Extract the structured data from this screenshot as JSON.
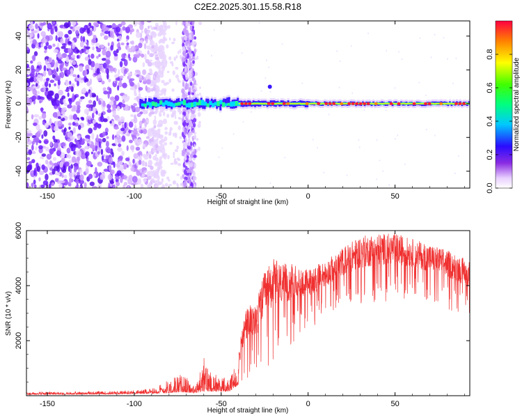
{
  "title": "C2E2.2025.301.15.58.R18",
  "chart_data": [
    {
      "type": "heatmap",
      "name": "spectrogram",
      "xlabel": "Height of straight line (km)",
      "ylabel": "Frequency (Hz)",
      "xlim": [
        -162,
        93
      ],
      "ylim": [
        -50,
        49
      ],
      "xticks": [
        -150,
        -100,
        -50,
        0,
        50
      ],
      "yticks": [
        -40,
        -20,
        0,
        20,
        40
      ],
      "colorbar": {
        "label": "Normalized spectral amplitude",
        "range": [
          0,
          1
        ],
        "ticks": [
          "0.0",
          "0.2",
          "0.4",
          "0.6",
          "0.8"
        ]
      },
      "features": {
        "noise_region_km": [
          -162,
          -90
        ],
        "noise_band_km": [
          -72,
          -65
        ],
        "signal_start_km": -97,
        "signal_frequency_hz": 0
      }
    },
    {
      "type": "line",
      "name": "snr",
      "xlabel": "Height of straight line (km)",
      "ylabel": "SNR (10 * v/v)",
      "xlim": [
        -162,
        93
      ],
      "ylim": [
        0,
        6000
      ],
      "xticks": [
        -150,
        -100,
        -50,
        0,
        50
      ],
      "yticks": [
        2000,
        4000,
        6000
      ],
      "color": "#f03030",
      "profile": {
        "x": [
          -162,
          -140,
          -110,
          -90,
          -80,
          -75,
          -70,
          -65,
          -60,
          -55,
          -50,
          -45,
          -40,
          -36,
          -30,
          -25,
          -20,
          -15,
          -10,
          -5,
          0,
          10,
          20,
          30,
          40,
          50,
          60,
          70,
          80,
          93
        ],
        "envelope_max": [
          130,
          140,
          170,
          250,
          600,
          800,
          700,
          300,
          1400,
          900,
          700,
          600,
          1600,
          3200,
          3400,
          4500,
          5000,
          4800,
          4800,
          4700,
          4600,
          4900,
          5400,
          5800,
          5900,
          5900,
          5700,
          5500,
          5300,
          4900
        ],
        "envelope_min": [
          40,
          50,
          60,
          80,
          100,
          130,
          120,
          100,
          150,
          160,
          150,
          150,
          400,
          500,
          600,
          900,
          1200,
          1500,
          1800,
          2100,
          2400,
          2800,
          3100,
          3200,
          3300,
          3400,
          3400,
          3300,
          3100,
          2800
        ]
      }
    }
  ]
}
